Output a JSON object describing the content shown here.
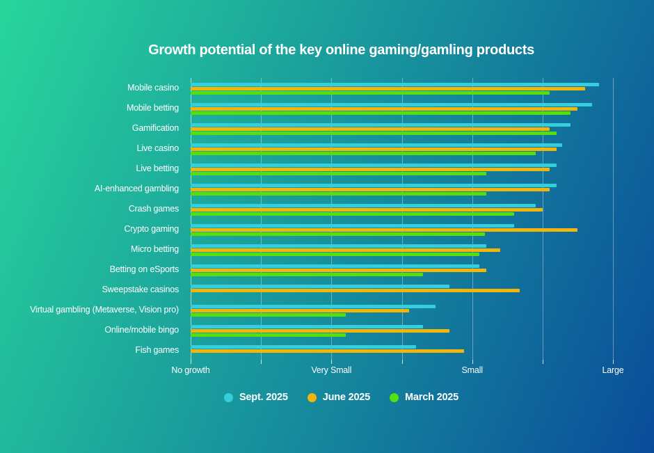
{
  "title": "Growth potential of the key online gaming/gamling products",
  "colors": {
    "background_start": "#26d49a",
    "background_end": "#084a98",
    "sept_2025": "#34cede",
    "june_2025": "#f2b50c",
    "march_2025": "#55e00d",
    "gridline": "rgba(255,255,255,0.36)",
    "text": "#ffffff"
  },
  "chart_data": {
    "type": "bar",
    "orientation": "horizontal",
    "title": "Growth potential of the key online gaming/gamling products",
    "xlabel": "",
    "ylabel": "",
    "grid": true,
    "legend_position": "bottom",
    "categories": [
      "Mobile casino",
      "Mobile betting",
      "Gamification",
      "Live casino",
      "Live betting",
      "AI-enhanced gambling",
      "Crash games",
      "Crypto gaming",
      "Micro betting",
      "Betting on eSports",
      "Sweepstake casinos",
      "Virtual gambling (Metaverse, Vision pro)",
      "Online/mobile bingo",
      "Fish games"
    ],
    "series": [
      {
        "name": "Sept. 2025",
        "color": "#34cede",
        "values": [
          2.9,
          2.85,
          2.7,
          2.64,
          2.6,
          2.6,
          2.45,
          2.3,
          2.1,
          2.05,
          1.84,
          1.74,
          1.65,
          1.6
        ]
      },
      {
        "name": "June 2025",
        "color": "#f2b50c",
        "values": [
          2.8,
          2.75,
          2.55,
          2.6,
          2.55,
          2.55,
          2.5,
          2.75,
          2.2,
          2.1,
          2.34,
          1.55,
          1.84,
          1.94
        ]
      },
      {
        "name": "March 2025",
        "color": "#55e00d",
        "values": [
          2.55,
          2.7,
          2.6,
          2.45,
          2.1,
          2.1,
          2.3,
          2.09,
          2.05,
          1.65,
          null,
          1.1,
          1.1,
          null
        ]
      }
    ],
    "x_axis": {
      "min": 0,
      "max": 3,
      "tick_step": 0.5,
      "labels": [
        {
          "text": "No growth",
          "value": 0
        },
        {
          "text": "Very Small",
          "value": 1
        },
        {
          "text": "Small",
          "value": 2
        },
        {
          "text": "Large",
          "value": 3
        }
      ]
    }
  }
}
